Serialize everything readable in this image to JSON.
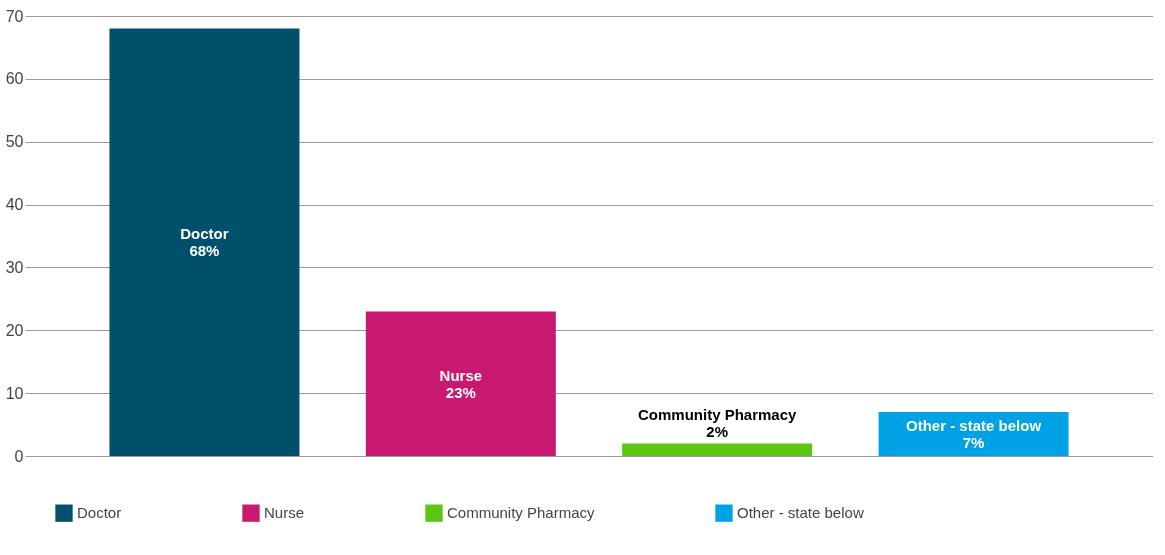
{
  "chart_data": {
    "type": "bar",
    "categories": [
      null,
      null,
      null,
      null
    ],
    "stacked": true,
    "series": [
      {
        "name": "Doctor",
        "color": "#00506b",
        "values": [
          68,
          null,
          null,
          null
        ],
        "value_labels": [
          "68%",
          null,
          null,
          null
        ]
      },
      {
        "name": "Nurse",
        "color": "#c8186f",
        "values": [
          null,
          23,
          null,
          null
        ],
        "value_labels": [
          null,
          "23%",
          null,
          null
        ]
      },
      {
        "name": "Community Pharmacy",
        "color": "#5cc614",
        "values": [
          null,
          null,
          2,
          null
        ],
        "value_labels": [
          null,
          null,
          "2%",
          null
        ]
      },
      {
        "name": "Other - state below",
        "color": "#00a2e6",
        "values": [
          null,
          null,
          null,
          7
        ],
        "value_labels": [
          null,
          null,
          null,
          "7%"
        ]
      }
    ],
    "ylim": [
      0,
      70
    ],
    "yticks": [
      0,
      10,
      20,
      30,
      40,
      50,
      60,
      70
    ],
    "grid": "y",
    "legend": "bottom",
    "tick_labels": "y"
  }
}
